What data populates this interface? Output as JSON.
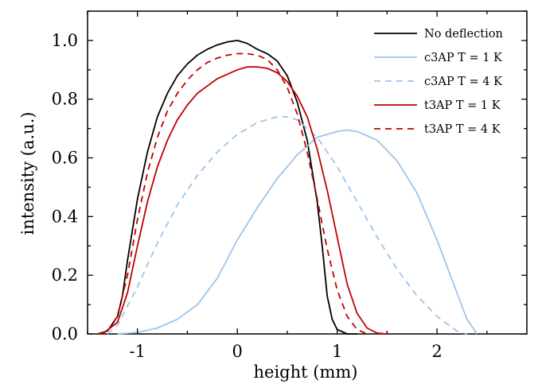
{
  "chart_data": {
    "type": "line",
    "title": "",
    "xlabel": "height (mm)",
    "ylabel": "intensity (a.u.)",
    "xlim": [
      -1.5,
      2.9
    ],
    "ylim": [
      0.0,
      1.1
    ],
    "xticks": [
      -1,
      0,
      1,
      2
    ],
    "xtick_labels": [
      "-1",
      "0",
      "1",
      "2"
    ],
    "yticks": [
      0.0,
      0.2,
      0.4,
      0.6,
      0.8,
      1.0
    ],
    "ytick_labels": [
      "0.0",
      "0.2",
      "0.4",
      "0.6",
      "0.8",
      "1.0"
    ],
    "grid": false,
    "legend_position": "top-right",
    "series": [
      {
        "name": "No deflection",
        "color": "#000000",
        "dash": "solid",
        "x": [
          -1.4,
          -1.3,
          -1.2,
          -1.15,
          -1.1,
          -1.0,
          -0.9,
          -0.8,
          -0.7,
          -0.6,
          -0.5,
          -0.4,
          -0.3,
          -0.2,
          -0.1,
          0.0,
          0.1,
          0.2,
          0.3,
          0.4,
          0.5,
          0.6,
          0.7,
          0.8,
          0.85,
          0.9,
          0.95,
          1.0,
          1.1,
          1.2
        ],
        "y": [
          0.0,
          0.01,
          0.06,
          0.13,
          0.25,
          0.46,
          0.62,
          0.74,
          0.82,
          0.88,
          0.92,
          0.95,
          0.97,
          0.985,
          0.995,
          1.0,
          0.99,
          0.97,
          0.955,
          0.93,
          0.88,
          0.79,
          0.66,
          0.45,
          0.3,
          0.13,
          0.05,
          0.015,
          0.0,
          0.0
        ]
      },
      {
        "name": "c3AP T = 1 K",
        "color": "#9cc4ec",
        "dash": "solid",
        "x": [
          -1.2,
          -1.0,
          -0.8,
          -0.6,
          -0.4,
          -0.2,
          0.0,
          0.2,
          0.4,
          0.6,
          0.8,
          1.0,
          1.1,
          1.2,
          1.4,
          1.6,
          1.8,
          2.0,
          2.2,
          2.3,
          2.4
        ],
        "y": [
          0.0,
          0.005,
          0.02,
          0.05,
          0.1,
          0.19,
          0.32,
          0.43,
          0.53,
          0.61,
          0.67,
          0.69,
          0.695,
          0.69,
          0.66,
          0.59,
          0.48,
          0.32,
          0.14,
          0.05,
          0.0
        ]
      },
      {
        "name": "c3AP T = 4 K",
        "color": "#9cc4ec",
        "dash": "dashed",
        "x": [
          -1.3,
          -1.2,
          -1.0,
          -0.8,
          -0.6,
          -0.4,
          -0.2,
          0.0,
          0.2,
          0.4,
          0.5,
          0.6,
          0.8,
          1.0,
          1.2,
          1.4,
          1.6,
          1.8,
          2.0,
          2.2,
          2.3
        ],
        "y": [
          0.0,
          0.03,
          0.16,
          0.31,
          0.44,
          0.54,
          0.62,
          0.68,
          0.72,
          0.74,
          0.74,
          0.73,
          0.67,
          0.57,
          0.45,
          0.33,
          0.22,
          0.13,
          0.06,
          0.01,
          0.0
        ]
      },
      {
        "name": "t3AP T = 1 K",
        "color": "#c00000",
        "dash": "solid",
        "x": [
          -1.35,
          -1.2,
          -1.1,
          -1.0,
          -0.9,
          -0.8,
          -0.7,
          -0.6,
          -0.5,
          -0.4,
          -0.2,
          0.0,
          0.1,
          0.2,
          0.3,
          0.4,
          0.5,
          0.6,
          0.7,
          0.8,
          0.9,
          1.0,
          1.1,
          1.2,
          1.3,
          1.4,
          1.5
        ],
        "y": [
          0.0,
          0.04,
          0.14,
          0.3,
          0.45,
          0.57,
          0.66,
          0.73,
          0.78,
          0.82,
          0.87,
          0.9,
          0.91,
          0.91,
          0.905,
          0.89,
          0.86,
          0.81,
          0.74,
          0.63,
          0.49,
          0.33,
          0.17,
          0.07,
          0.02,
          0.003,
          0.0
        ]
      },
      {
        "name": "t3AP T = 4 K",
        "color": "#c00000",
        "dash": "dashed",
        "x": [
          -1.4,
          -1.3,
          -1.2,
          -1.1,
          -1.0,
          -0.9,
          -0.8,
          -0.7,
          -0.6,
          -0.5,
          -0.4,
          -0.3,
          -0.2,
          -0.1,
          0.0,
          0.1,
          0.2,
          0.3,
          0.4,
          0.5,
          0.6,
          0.7,
          0.8,
          0.9,
          1.0,
          1.1,
          1.2,
          1.3
        ],
        "y": [
          0.0,
          0.01,
          0.06,
          0.2,
          0.39,
          0.55,
          0.67,
          0.76,
          0.82,
          0.865,
          0.9,
          0.925,
          0.94,
          0.95,
          0.955,
          0.955,
          0.95,
          0.935,
          0.9,
          0.84,
          0.75,
          0.62,
          0.46,
          0.29,
          0.15,
          0.06,
          0.015,
          0.0
        ]
      }
    ]
  }
}
